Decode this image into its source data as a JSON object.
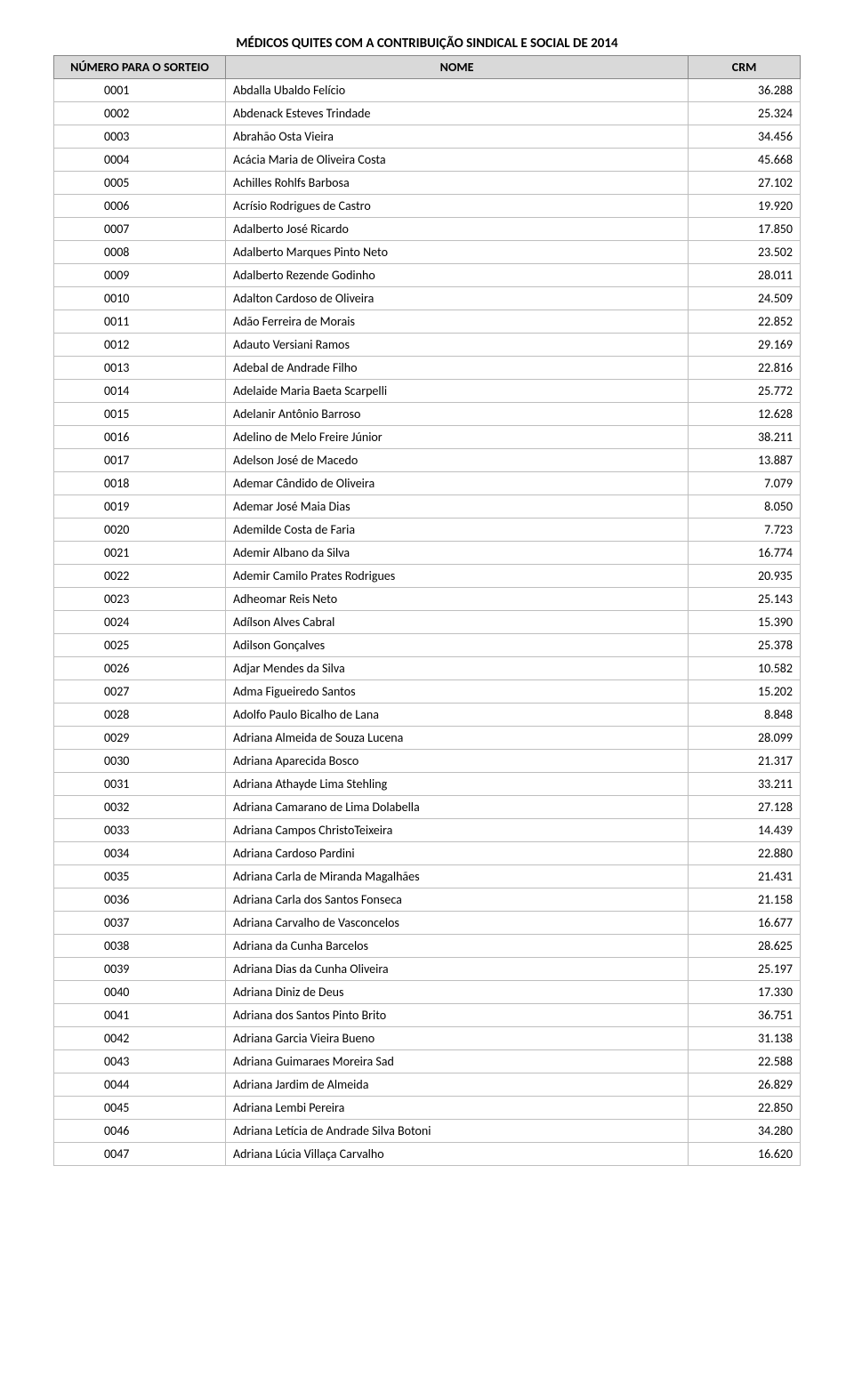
{
  "title": "MÉDICOS QUITES COM A CONTRIBUIÇÃO SINDICAL E SOCIAL DE 2014",
  "columns": {
    "numero": "NÚMERO PARA O SORTEIO",
    "nome": "NOME",
    "crm": "CRM"
  },
  "rows": [
    {
      "num": "0001",
      "nome": "Abdalla Ubaldo Felício",
      "crm": "36.288"
    },
    {
      "num": "0002",
      "nome": "Abdenack Esteves Trindade",
      "crm": "25.324"
    },
    {
      "num": "0003",
      "nome": "Abrahão Osta Vieira",
      "crm": "34.456"
    },
    {
      "num": "0004",
      "nome": "Acácia Maria de Oliveira Costa",
      "crm": "45.668"
    },
    {
      "num": "0005",
      "nome": "Achilles Rohlfs Barbosa",
      "crm": "27.102"
    },
    {
      "num": "0006",
      "nome": "Acrísio Rodrigues de Castro",
      "crm": "19.920"
    },
    {
      "num": "0007",
      "nome": "Adalberto José Ricardo",
      "crm": "17.850"
    },
    {
      "num": "0008",
      "nome": "Adalberto Marques Pinto Neto",
      "crm": "23.502"
    },
    {
      "num": "0009",
      "nome": "Adalberto Rezende Godinho",
      "crm": "28.011"
    },
    {
      "num": "0010",
      "nome": "Adalton Cardoso de Oliveira",
      "crm": "24.509"
    },
    {
      "num": "0011",
      "nome": "Adão Ferreira de Morais",
      "crm": "22.852"
    },
    {
      "num": "0012",
      "nome": "Adauto Versiani Ramos",
      "crm": "29.169"
    },
    {
      "num": "0013",
      "nome": "Adebal de Andrade Filho",
      "crm": "22.816"
    },
    {
      "num": "0014",
      "nome": "Adelaide Maria Baeta Scarpelli",
      "crm": "25.772"
    },
    {
      "num": "0015",
      "nome": "Adelanir Antônio Barroso",
      "crm": "12.628"
    },
    {
      "num": "0016",
      "nome": "Adelino de Melo Freire Júnior",
      "crm": "38.211"
    },
    {
      "num": "0017",
      "nome": "Adelson José de Macedo",
      "crm": "13.887"
    },
    {
      "num": "0018",
      "nome": "Ademar Cândido de Oliveira",
      "crm": "7.079"
    },
    {
      "num": "0019",
      "nome": "Ademar José Maia Dias",
      "crm": "8.050"
    },
    {
      "num": "0020",
      "nome": "Ademilde Costa de Faria",
      "crm": "7.723"
    },
    {
      "num": "0021",
      "nome": "Ademir Albano da Silva",
      "crm": "16.774"
    },
    {
      "num": "0022",
      "nome": "Ademir Camilo Prates Rodrigues",
      "crm": "20.935"
    },
    {
      "num": "0023",
      "nome": "Adheomar Reis Neto",
      "crm": "25.143"
    },
    {
      "num": "0024",
      "nome": "Adílson Alves Cabral",
      "crm": "15.390"
    },
    {
      "num": "0025",
      "nome": "Adilson Gonçalves",
      "crm": "25.378"
    },
    {
      "num": "0026",
      "nome": "Adjar Mendes da Silva",
      "crm": "10.582"
    },
    {
      "num": "0027",
      "nome": "Adma Figueiredo Santos",
      "crm": "15.202"
    },
    {
      "num": "0028",
      "nome": "Adolfo Paulo Bicalho de Lana",
      "crm": "8.848"
    },
    {
      "num": "0029",
      "nome": "Adriana Almeida de Souza Lucena",
      "crm": "28.099"
    },
    {
      "num": "0030",
      "nome": "Adriana Aparecida Bosco",
      "crm": "21.317"
    },
    {
      "num": "0031",
      "nome": "Adriana Athayde Lima Stehling",
      "crm": "33.211"
    },
    {
      "num": "0032",
      "nome": "Adriana Camarano de Lima Dolabella",
      "crm": "27.128"
    },
    {
      "num": "0033",
      "nome": "Adriana Campos ChristoTeixeira",
      "crm": "14.439"
    },
    {
      "num": "0034",
      "nome": "Adriana Cardoso Pardini",
      "crm": "22.880"
    },
    {
      "num": "0035",
      "nome": "Adriana Carla de Miranda Magalhães",
      "crm": "21.431"
    },
    {
      "num": "0036",
      "nome": "Adriana Carla dos Santos  Fonseca",
      "crm": "21.158"
    },
    {
      "num": "0037",
      "nome": "Adriana Carvalho de Vasconcelos",
      "crm": "16.677"
    },
    {
      "num": "0038",
      "nome": "Adriana da Cunha Barcelos",
      "crm": "28.625"
    },
    {
      "num": "0039",
      "nome": "Adriana Dias da Cunha Oliveira",
      "crm": "25.197"
    },
    {
      "num": "0040",
      "nome": "Adriana Diniz de Deus",
      "crm": "17.330"
    },
    {
      "num": "0041",
      "nome": "Adriana dos Santos Pinto Brito",
      "crm": "36.751"
    },
    {
      "num": "0042",
      "nome": "Adriana Garcia Vieira Bueno",
      "crm": "31.138"
    },
    {
      "num": "0043",
      "nome": "Adriana Guimaraes Moreira Sad",
      "crm": "22.588"
    },
    {
      "num": "0044",
      "nome": "Adriana Jardim de Almeida",
      "crm": "26.829"
    },
    {
      "num": "0045",
      "nome": "Adriana Lembi Pereira",
      "crm": "22.850"
    },
    {
      "num": "0046",
      "nome": "Adriana Letícia de Andrade Silva Botoni",
      "crm": "34.280"
    },
    {
      "num": "0047",
      "nome": "Adriana Lúcia Villaça Carvalho",
      "crm": "16.620"
    }
  ]
}
